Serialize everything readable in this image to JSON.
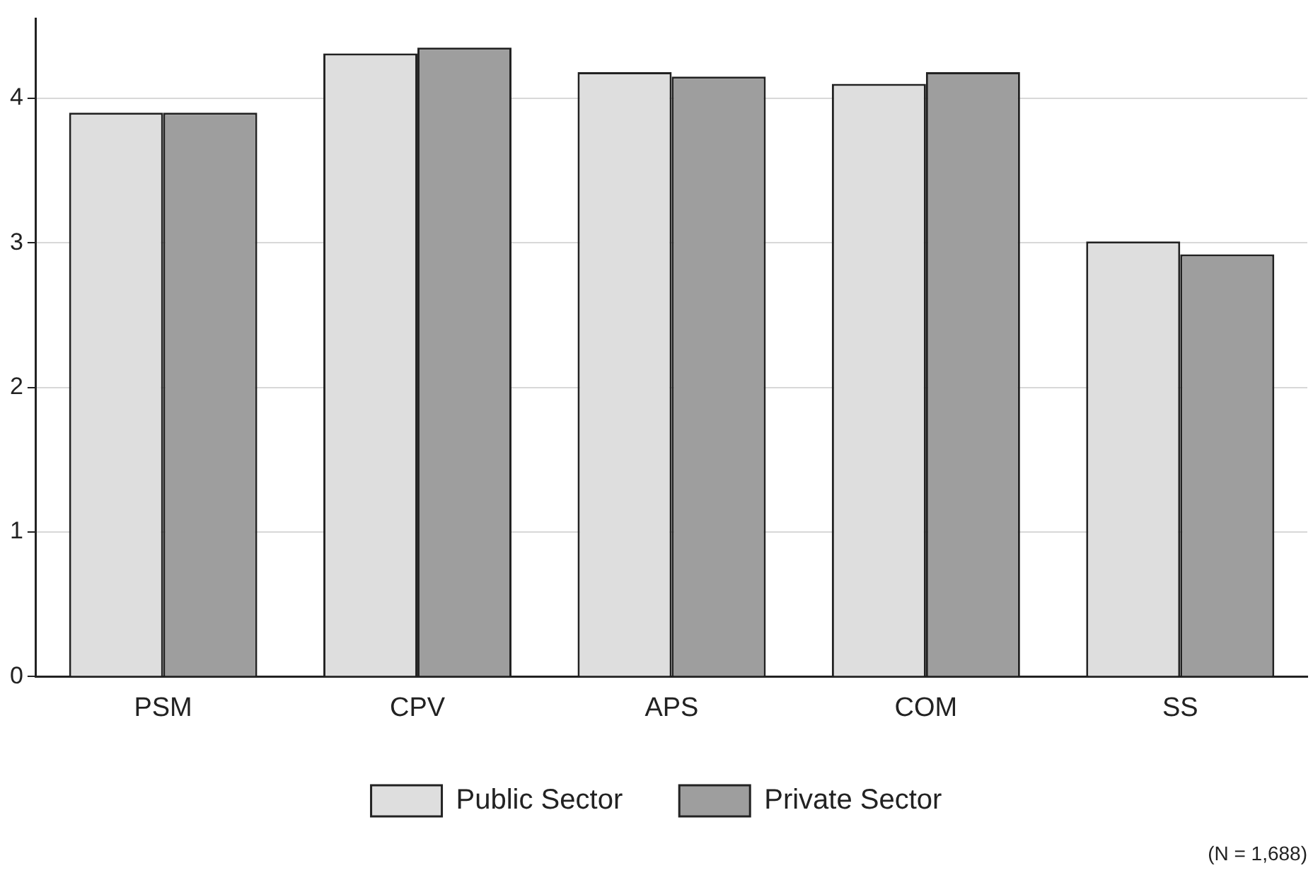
{
  "chart_data": {
    "type": "bar",
    "categories": [
      "PSM",
      "CPV",
      "APS",
      "COM",
      "SS"
    ],
    "series": [
      {
        "name": "Public Sector",
        "color": "#dedede",
        "values": [
          3.9,
          4.31,
          4.18,
          4.1,
          3.01
        ]
      },
      {
        "name": "Private Sector",
        "color": "#9e9e9e",
        "values": [
          3.9,
          4.35,
          4.15,
          4.18,
          2.92
        ]
      }
    ],
    "ylim": [
      0,
      4.55
    ],
    "yticks": [
      0,
      1,
      2,
      3,
      4
    ],
    "grid": "y",
    "legend": "bottom",
    "annotations": [
      "(N = 1,688)"
    ]
  }
}
